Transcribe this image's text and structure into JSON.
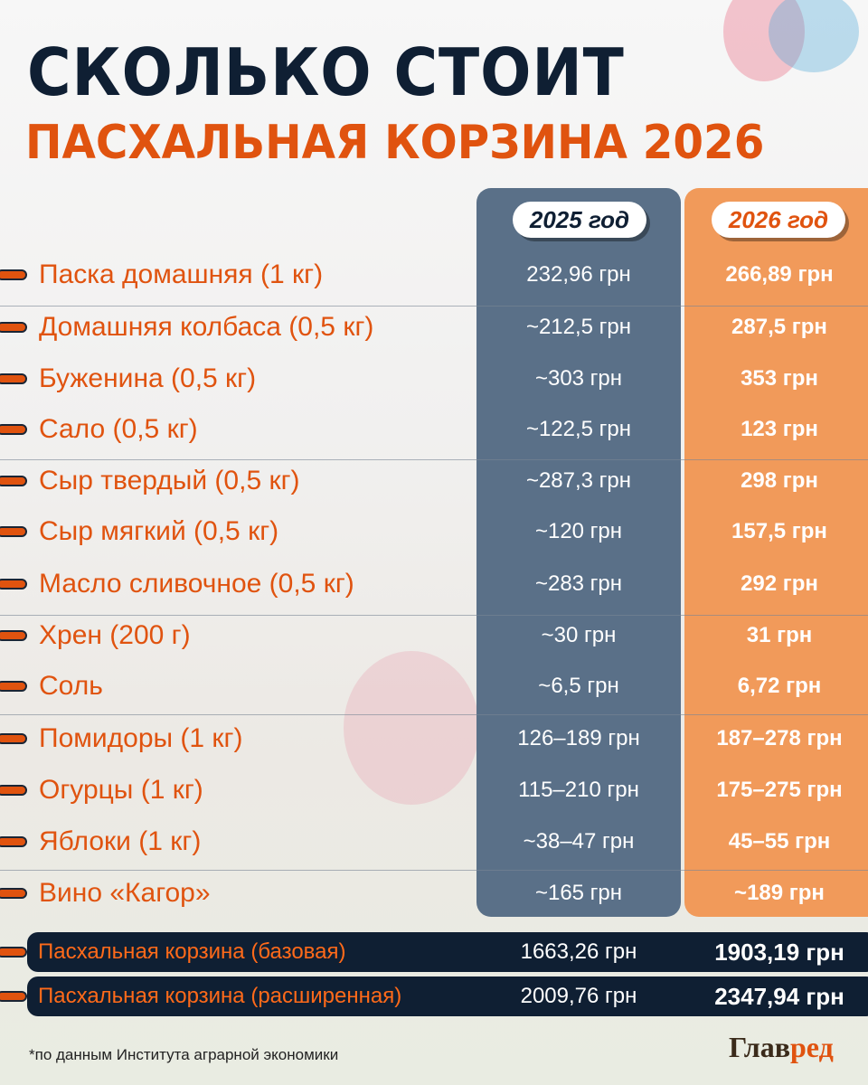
{
  "title_line1": "СКОЛЬКО СТОИТ",
  "title_line2": "ПАСХАЛЬНАЯ КОРЗИНА 2026",
  "columns": [
    "2025 год",
    "2026 год"
  ],
  "colors": {
    "orange": "#e0530f",
    "navy": "#0f1f33",
    "col2025": "#5a7088",
    "col2026": "#f19a5a"
  },
  "rows": [
    {
      "name": "Паска домашняя (1 кг)",
      "y2025": "232,96 грн",
      "y2026": "266,89 грн"
    },
    {
      "name": "Домашняя колбаса (0,5 кг)",
      "y2025": "~212,5 грн",
      "y2026": "287,5 грн"
    },
    {
      "name": "Буженина (0,5 кг)",
      "y2025": "~303 грн",
      "y2026": "353 грн"
    },
    {
      "name": "Сало (0,5 кг)",
      "y2025": "~122,5 грн",
      "y2026": "123 грн"
    },
    {
      "name": "Сыр твердый (0,5 кг)",
      "y2025": "~287,3 грн",
      "y2026": "298 грн"
    },
    {
      "name": "Сыр мягкий (0,5 кг)",
      "y2025": "~120 грн",
      "y2026": "157,5 грн"
    },
    {
      "name": "Масло сливочное (0,5 кг)",
      "y2025": "~283 грн",
      "y2026": "292 грн"
    },
    {
      "name": "Хрен (200 г)",
      "y2025": "~30 грн",
      "y2026": "31 грн"
    },
    {
      "name": "Соль",
      "y2025": "~6,5 грн",
      "y2026": "6,72 грн"
    },
    {
      "name": "Помидоры (1 кг)",
      "y2025": "126–189 грн",
      "y2026": "187–278 грн"
    },
    {
      "name": "Огурцы (1 кг)",
      "y2025": "115–210 грн",
      "y2026": "175–275 грн"
    },
    {
      "name": "Яблоки (1 кг)",
      "y2025": "~38–47 грн",
      "y2026": "45–55 грн"
    },
    {
      "name": "Вино «Кагор»",
      "y2025": "~165 грн",
      "y2026": "~189 грн"
    }
  ],
  "totals": [
    {
      "name": "Пасхальная корзина (базовая)",
      "y2025": "1663,26 грн",
      "y2026": "1903,19 грн"
    },
    {
      "name": "Пасхальная корзина (расширенная)",
      "y2025": "2009,76 грн",
      "y2026": "2347,94 грн"
    }
  ],
  "footnote": "*по данным Института аграрной экономики",
  "logo": "Главред"
}
